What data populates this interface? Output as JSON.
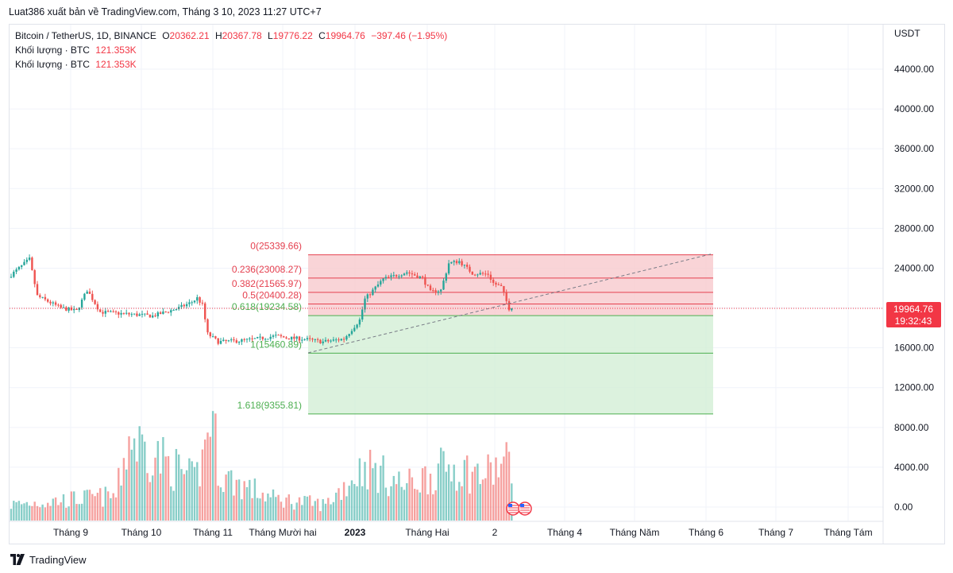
{
  "header": {
    "publish_text": "Luat386 xuất bản về TradingView.com, Tháng 3 10, 2023 11:27 UTC+7"
  },
  "legend": {
    "symbol": "Bitcoin / TetherUS, 1D, BINANCE",
    "o_key": "O",
    "o_val": "20362.21",
    "h_key": "H",
    "h_val": "20367.78",
    "l_key": "L",
    "l_val": "19776.22",
    "c_key": "C",
    "c_val": "19964.76",
    "change": "−397.46 (−1.95%)",
    "volume_label_1": "Khối lượng · BTC",
    "volume_value_1": "121.353K",
    "volume_label_2": "Khối lượng · BTC",
    "volume_value_2": "121.353K"
  },
  "footer": {
    "brand": "TradingView"
  },
  "colors": {
    "up": "#26a69a",
    "down": "#ef5350",
    "fib_red_fill": "#f8c9cd",
    "fib_green_fill": "#d3efd6",
    "fib_red_line": "#e5404f",
    "fib_green_line": "#4caf50",
    "price_tag": "#f23645"
  },
  "chart_data": {
    "type": "candlestick",
    "y_axis": {
      "unit": "USDT",
      "ticks": [
        "44000.00",
        "40000.00",
        "36000.00",
        "32000.00",
        "28000.00",
        "24000.00",
        "20000.00",
        "16000.00",
        "12000.00",
        "8000.00",
        "4000.00",
        "0.00"
      ],
      "tick_values": [
        44000,
        40000,
        36000,
        32000,
        28000,
        24000,
        20000,
        16000,
        12000,
        8000,
        4000,
        0
      ]
    },
    "x_axis": {
      "labels": [
        "Tháng 9",
        "Tháng 10",
        "Tháng 11",
        "Tháng Mười hai",
        "2023",
        "Tháng Hai",
        "2",
        "Tháng 4",
        "Tháng Năm",
        "Tháng 6",
        "Tháng 7",
        "Tháng Tám"
      ],
      "bold_label": "2023"
    },
    "last_price": {
      "value": 19964.76,
      "label": "19964.76",
      "countdown": "19:32:43"
    },
    "fib_levels": [
      {
        "label": "0(25339.66)",
        "value": 25339.66,
        "zone": "red"
      },
      {
        "label": "0.236(23008.27)",
        "value": 23008.27,
        "zone": "red"
      },
      {
        "label": "0.382(21565.97)",
        "value": 21565.97,
        "zone": "red"
      },
      {
        "label": "0.5(20400.28)",
        "value": 20400.28,
        "zone": "red"
      },
      {
        "label": "0.618(19234.58)",
        "value": 19234.58,
        "zone": "green"
      },
      {
        "label": "1(15460.89)",
        "value": 15460.89,
        "zone": "green"
      },
      {
        "label": "1.618(9355.81)",
        "value": 9355.81,
        "zone": "green"
      }
    ],
    "price_anchors": [
      {
        "day": 0,
        "price": 23100
      },
      {
        "day": 8,
        "price": 24900
      },
      {
        "day": 11,
        "price": 21200
      },
      {
        "day": 20,
        "price": 20000
      },
      {
        "day": 26,
        "price": 19700
      },
      {
        "day": 30,
        "price": 21800
      },
      {
        "day": 35,
        "price": 19600
      },
      {
        "day": 45,
        "price": 19400
      },
      {
        "day": 55,
        "price": 19200
      },
      {
        "day": 65,
        "price": 20000
      },
      {
        "day": 70,
        "price": 20600
      },
      {
        "day": 72,
        "price": 21000
      },
      {
        "day": 74,
        "price": 20300
      },
      {
        "day": 76,
        "price": 17400
      },
      {
        "day": 80,
        "price": 16600
      },
      {
        "day": 88,
        "price": 16700
      },
      {
        "day": 95,
        "price": 16900
      },
      {
        "day": 102,
        "price": 17200
      },
      {
        "day": 106,
        "price": 17000
      },
      {
        "day": 112,
        "price": 16900
      },
      {
        "day": 120,
        "price": 16600
      },
      {
        "day": 128,
        "price": 16900
      },
      {
        "day": 134,
        "price": 18800
      },
      {
        "day": 136,
        "price": 20900
      },
      {
        "day": 143,
        "price": 22900
      },
      {
        "day": 152,
        "price": 23600
      },
      {
        "day": 158,
        "price": 23000
      },
      {
        "day": 161,
        "price": 21600
      },
      {
        "day": 165,
        "price": 21800
      },
      {
        "day": 168,
        "price": 24500
      },
      {
        "day": 172,
        "price": 24700
      },
      {
        "day": 177,
        "price": 23500
      },
      {
        "day": 183,
        "price": 23400
      },
      {
        "day": 185,
        "price": 22500
      },
      {
        "day": 188,
        "price": 22100
      },
      {
        "day": 191,
        "price": 19964
      }
    ],
    "volume_anchors": [
      {
        "day": 0,
        "vol": 1600
      },
      {
        "day": 40,
        "vol": 2500
      },
      {
        "day": 45,
        "vol": 8300
      },
      {
        "day": 70,
        "vol": 4000
      },
      {
        "day": 73,
        "vol": 6000
      },
      {
        "day": 76,
        "vol": 11100
      },
      {
        "day": 80,
        "vol": 4500
      },
      {
        "day": 100,
        "vol": 2200
      },
      {
        "day": 120,
        "vol": 1600
      },
      {
        "day": 135,
        "vol": 5500
      },
      {
        "day": 150,
        "vol": 3500
      },
      {
        "day": 168,
        "vol": 5500
      },
      {
        "day": 180,
        "vol": 4500
      },
      {
        "day": 191,
        "vol": 6000
      }
    ],
    "num_days": 192
  }
}
